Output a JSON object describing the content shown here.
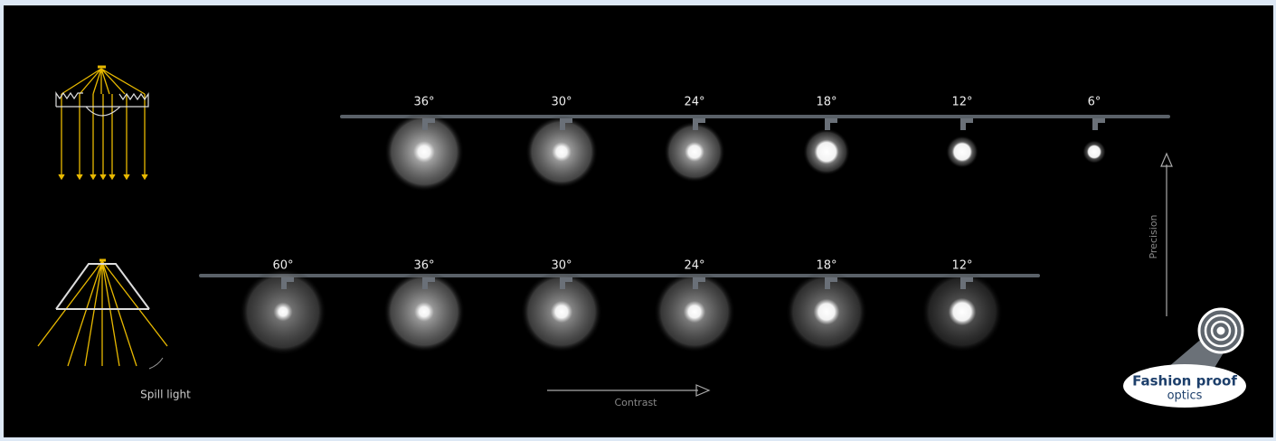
{
  "rows": [
    {
      "beams": [
        "36°",
        "30°",
        "24°",
        "18°",
        "12°",
        "6°"
      ]
    },
    {
      "beams": [
        "60°",
        "36°",
        "30°",
        "24°",
        "18°",
        "12°"
      ]
    }
  ],
  "spill_label": "Spill light",
  "contrast_label": "Contrast",
  "precision_label": "Precision",
  "logo": {
    "line1": "Fashion proof",
    "line2": "optics"
  }
}
